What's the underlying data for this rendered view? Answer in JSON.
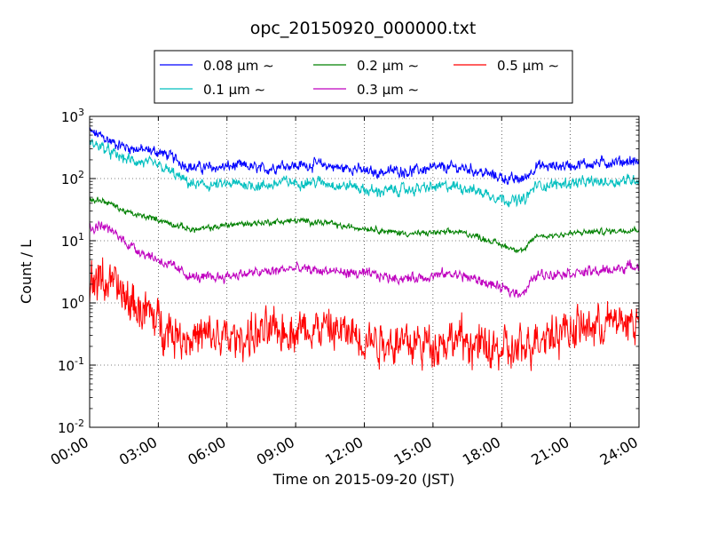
{
  "chart_data": {
    "type": "line",
    "title": "opc_20150920_000000.txt",
    "xlabel": "Time on 2015-09-20 (JST)",
    "ylabel": "Count / L",
    "yscale": "log",
    "ylim": [
      0.01,
      1000
    ],
    "xlim": [
      "00:00",
      "24:00"
    ],
    "x_tick_labels": [
      "00:00",
      "03:00",
      "06:00",
      "09:00",
      "12:00",
      "15:00",
      "18:00",
      "21:00",
      "24:00"
    ],
    "y_tick_labels": [
      {
        "base": "10",
        "exp": "-2"
      },
      {
        "base": "10",
        "exp": "-1"
      },
      {
        "base": "10",
        "exp": "0"
      },
      {
        "base": "10",
        "exp": "1"
      },
      {
        "base": "10",
        "exp": "2"
      },
      {
        "base": "10",
        "exp": "3"
      }
    ],
    "grid": true,
    "legend_position": "top-center",
    "x_hours": [
      0,
      0.5,
      1,
      1.5,
      2,
      2.5,
      3,
      3.5,
      4,
      4.5,
      5,
      5.5,
      6,
      6.5,
      7,
      7.5,
      8,
      8.5,
      9,
      9.5,
      10,
      10.5,
      11,
      11.5,
      12,
      12.5,
      13,
      13.5,
      14,
      14.5,
      15,
      15.5,
      16,
      16.5,
      17,
      17.5,
      18,
      18.5,
      19,
      19.5,
      20,
      20.5,
      21,
      21.5,
      22,
      22.5,
      23,
      23.5,
      24
    ],
    "series": [
      {
        "name": "0.08 μm ∼",
        "color": "#0000ff",
        "noise": 0.13,
        "values": [
          560,
          480,
          380,
          330,
          300,
          280,
          270,
          230,
          180,
          150,
          150,
          150,
          155,
          160,
          155,
          140,
          150,
          170,
          160,
          165,
          170,
          160,
          145,
          150,
          130,
          125,
          130,
          135,
          130,
          140,
          145,
          150,
          150,
          145,
          130,
          115,
          105,
          95,
          100,
          160,
          155,
          160,
          165,
          170,
          175,
          180,
          185,
          190,
          185
        ]
      },
      {
        "name": "0.1 μm ∼",
        "color": "#00bfbf",
        "noise": 0.13,
        "values": [
          380,
          330,
          250,
          210,
          190,
          175,
          160,
          130,
          100,
          80,
          78,
          78,
          80,
          82,
          80,
          75,
          80,
          90,
          85,
          88,
          88,
          84,
          75,
          78,
          65,
          62,
          64,
          66,
          66,
          70,
          72,
          75,
          75,
          70,
          62,
          55,
          48,
          44,
          45,
          78,
          78,
          82,
          85,
          86,
          88,
          88,
          90,
          95,
          98
        ]
      },
      {
        "name": "0.2 μm ∼",
        "color": "#008000",
        "noise": 0.07,
        "values": [
          45,
          45,
          38,
          30,
          26,
          24,
          22,
          19,
          17,
          15,
          15.5,
          16.5,
          18,
          18.5,
          19,
          19.5,
          20,
          20.5,
          21,
          20.5,
          20,
          19,
          17,
          16.5,
          16,
          15.5,
          14,
          13.5,
          13,
          13,
          13.5,
          13.5,
          14,
          13,
          11.5,
          10,
          8.5,
          7.5,
          7,
          12,
          12,
          12.5,
          13,
          13.5,
          14,
          14,
          14.5,
          15,
          15.5
        ]
      },
      {
        "name": "0.3 μm ∼",
        "color": "#bf00bf",
        "noise": 0.12,
        "values": [
          15,
          18,
          14,
          10,
          7.5,
          6,
          5,
          4,
          3.2,
          2.6,
          2.5,
          2.6,
          2.7,
          2.9,
          3,
          3.1,
          3.2,
          3.5,
          3.6,
          3.4,
          3.3,
          3.3,
          3.1,
          3,
          2.9,
          2.8,
          2.6,
          2.5,
          2.5,
          2.6,
          2.7,
          2.9,
          2.9,
          2.6,
          2.3,
          2,
          1.7,
          1.5,
          1.5,
          2.8,
          2.9,
          3,
          3.1,
          3.1,
          3.2,
          3.3,
          3.5,
          3.8,
          4
        ]
      },
      {
        "name": "0.5 μm ∼",
        "color": "#ff0000",
        "noise": 0.5,
        "values": [
          2,
          2.5,
          2,
          1.2,
          0.9,
          0.7,
          0.5,
          0.38,
          0.3,
          0.28,
          0.28,
          0.28,
          0.26,
          0.27,
          0.3,
          0.32,
          0.33,
          0.36,
          0.38,
          0.4,
          0.4,
          0.38,
          0.33,
          0.32,
          0.28,
          0.26,
          0.24,
          0.24,
          0.22,
          0.22,
          0.23,
          0.25,
          0.26,
          0.23,
          0.2,
          0.18,
          0.17,
          0.16,
          0.18,
          0.3,
          0.33,
          0.36,
          0.38,
          0.4,
          0.42,
          0.45,
          0.5,
          0.5,
          0.5
        ]
      }
    ]
  }
}
